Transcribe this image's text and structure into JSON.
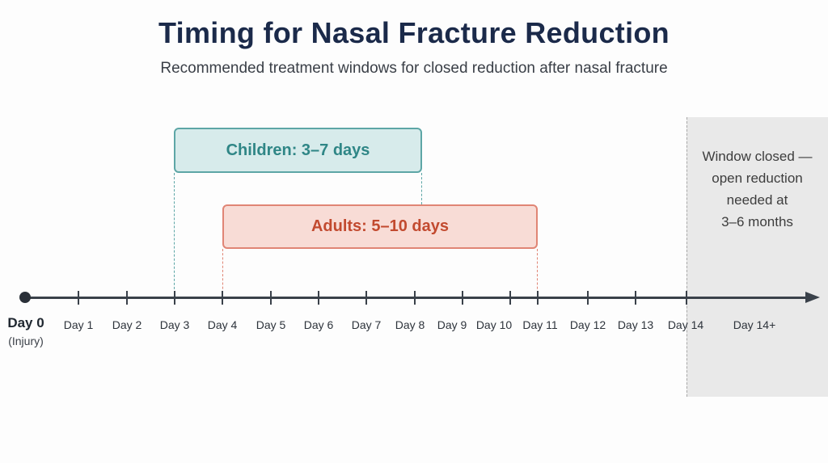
{
  "title": "Timing for Nasal Fracture Reduction",
  "subtitle": "Recommended treatment windows for closed reduction after nasal fracture",
  "timeline": {
    "start": {
      "label": "Day 0",
      "sublabel": "(Injury)"
    },
    "ticks": [
      "Day 1",
      "Day 2",
      "Day 3",
      "Day 4",
      "Day 5",
      "Day 6",
      "Day 7",
      "Day 8",
      "Day 9",
      "Day 10",
      "Day 11",
      "Day 12",
      "Day 13",
      "Day 14",
      "Day 14+"
    ]
  },
  "windows": {
    "children": {
      "label": "Children: 3–7 days",
      "color": "#5da6a6"
    },
    "adults": {
      "label": "Adults: 5–10 days",
      "color": "#e08575"
    }
  },
  "closed_zone": {
    "lines": [
      "Window closed —",
      "open reduction",
      "needed at",
      "3–6 months"
    ]
  }
}
